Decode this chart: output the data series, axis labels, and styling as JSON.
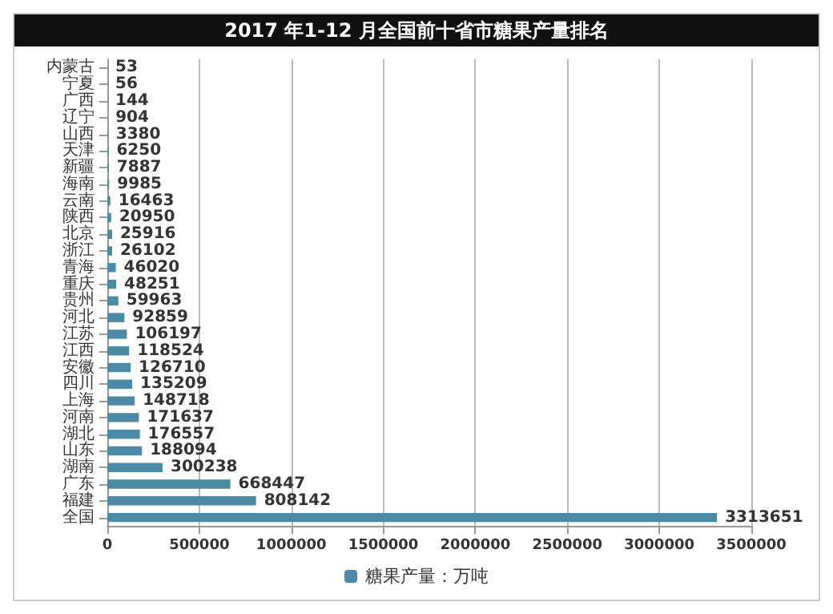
{
  "chart_data": {
    "type": "bar",
    "orientation": "horizontal",
    "title": "2017 年1-12 月全国前十省市糖果产量排名",
    "categories": [
      "内蒙古",
      "宁夏",
      "广西",
      "辽宁",
      "山西",
      "天津",
      "新疆",
      "海南",
      "云南",
      "陕西",
      "北京",
      "浙江",
      "青海",
      "重庆",
      "贵州",
      "河北",
      "江苏",
      "江西",
      "安徽",
      "四川",
      "上海",
      "河南",
      "湖北",
      "山东",
      "湖南",
      "广东",
      "福建",
      "全国"
    ],
    "series": [
      {
        "name": "糖果产量：万吨",
        "color": "#4a8aa6",
        "values": [
          53,
          56,
          144,
          904,
          3380,
          6250,
          7887,
          9985,
          16463,
          20950,
          25916,
          26102,
          46020,
          48251,
          59963,
          92859,
          106197,
          118524,
          126710,
          135209,
          148718,
          171637,
          176557,
          188094,
          300238,
          668447,
          808142,
          3313651
        ]
      }
    ],
    "xlim": [
      0,
      3500000
    ],
    "xticks": [
      0,
      500000,
      1000000,
      1500000,
      2000000,
      2500000,
      3000000,
      3500000
    ],
    "grid": "x",
    "legend": "bottom",
    "data_labels": true
  }
}
